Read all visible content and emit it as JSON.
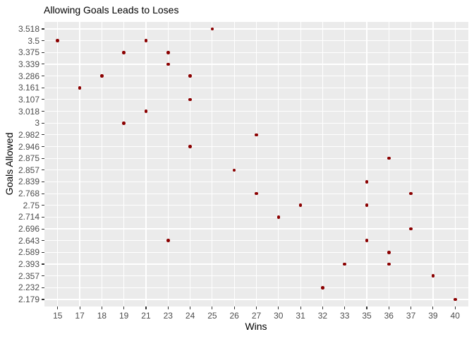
{
  "chart": {
    "title": "Allowing Goals Leads to Loses",
    "xlabel": "Wins",
    "ylabel": "Goals Allowed"
  },
  "chart_data": {
    "type": "scatter",
    "title": "Allowing Goals Leads to Loses",
    "xlabel": "Wins",
    "ylabel": "Goals Allowed",
    "axes_style": "both axes discrete categorical (factor levels, evenly spaced)",
    "grid": "major white gridlines at every category on gray panel, no minor gridlines",
    "legend_position": "none",
    "x_categories": [
      "15",
      "17",
      "18",
      "19",
      "21",
      "23",
      "24",
      "25",
      "26",
      "27",
      "30",
      "31",
      "32",
      "33",
      "35",
      "36",
      "37",
      "39",
      "40"
    ],
    "y_categories_top_to_bottom": [
      "3.518",
      "3.5",
      "3.375",
      "3.339",
      "3.286",
      "3.161",
      "3.107",
      "3.018",
      "3",
      "2.982",
      "2.946",
      "2.875",
      "2.857",
      "2.839",
      "2.768",
      "2.75",
      "2.714",
      "2.696",
      "2.643",
      "2.589",
      "2.393",
      "2.357",
      "2.232",
      "2.179"
    ],
    "points": [
      {
        "wins": "15",
        "goals": "3.5"
      },
      {
        "wins": "17",
        "goals": "3.161"
      },
      {
        "wins": "18",
        "goals": "3.286"
      },
      {
        "wins": "19",
        "goals": "3.375"
      },
      {
        "wins": "19",
        "goals": "3"
      },
      {
        "wins": "21",
        "goals": "3.5"
      },
      {
        "wins": "21",
        "goals": "3.018"
      },
      {
        "wins": "23",
        "goals": "3.375"
      },
      {
        "wins": "23",
        "goals": "3.339"
      },
      {
        "wins": "23",
        "goals": "2.643"
      },
      {
        "wins": "24",
        "goals": "3.286"
      },
      {
        "wins": "24",
        "goals": "3.107"
      },
      {
        "wins": "24",
        "goals": "2.946"
      },
      {
        "wins": "25",
        "goals": "3.518"
      },
      {
        "wins": "26",
        "goals": "2.857"
      },
      {
        "wins": "27",
        "goals": "2.982"
      },
      {
        "wins": "27",
        "goals": "2.768"
      },
      {
        "wins": "30",
        "goals": "2.714"
      },
      {
        "wins": "31",
        "goals": "2.75"
      },
      {
        "wins": "32",
        "goals": "2.232"
      },
      {
        "wins": "33",
        "goals": "2.393"
      },
      {
        "wins": "35",
        "goals": "2.839"
      },
      {
        "wins": "35",
        "goals": "2.75"
      },
      {
        "wins": "35",
        "goals": "2.643"
      },
      {
        "wins": "36",
        "goals": "2.875"
      },
      {
        "wins": "36",
        "goals": "2.589"
      },
      {
        "wins": "36",
        "goals": "2.393"
      },
      {
        "wins": "37",
        "goals": "2.768"
      },
      {
        "wins": "37",
        "goals": "2.696"
      },
      {
        "wins": "39",
        "goals": "2.357"
      },
      {
        "wins": "40",
        "goals": "2.179"
      }
    ],
    "colors": {
      "point": "#8B0000",
      "panel_background": "#EBEBEB",
      "gridline": "#FFFFFF",
      "tick_label": "#4D4D4D",
      "tick_mark": "#333333",
      "title_text": "#000000",
      "figure_background": "#FFFFFF"
    }
  }
}
